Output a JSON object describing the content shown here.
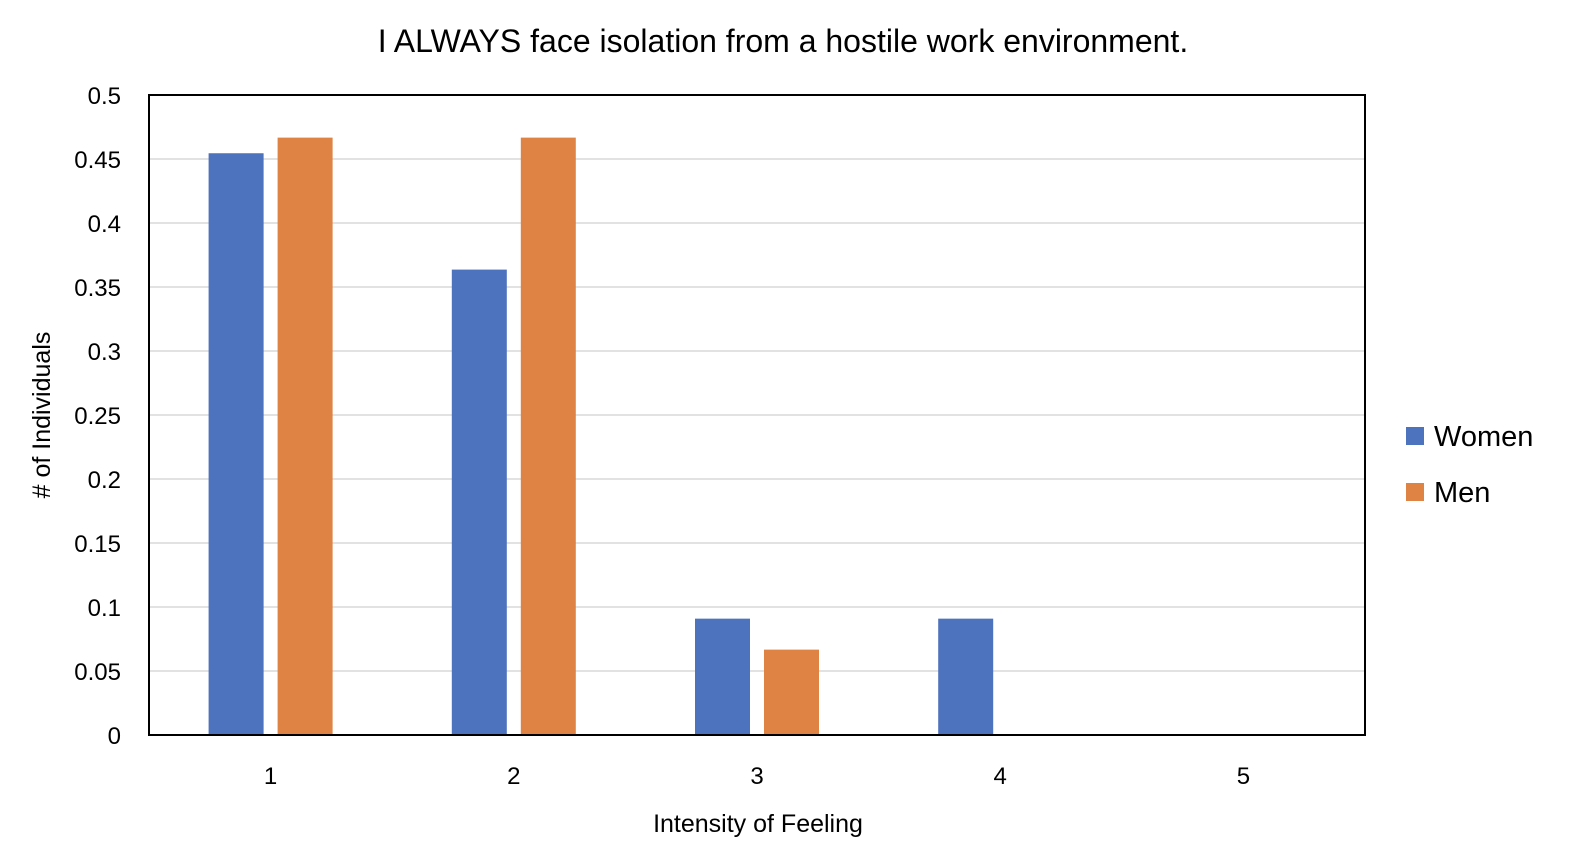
{
  "chart_data": {
    "type": "bar",
    "title": "I ALWAYS face isolation from a hostile work environment.",
    "xlabel": "Intensity of Feeling",
    "ylabel": "# of Individuals",
    "categories": [
      "1",
      "2",
      "3",
      "4",
      "5"
    ],
    "series": [
      {
        "name": "Women",
        "color": "#4E73BE",
        "values": [
          0.4545,
          0.3636,
          0.0909,
          0.0909,
          0
        ]
      },
      {
        "name": "Men",
        "color": "#DF8344",
        "values": [
          0.4667,
          0.4667,
          0.0667,
          0,
          0
        ]
      }
    ],
    "ylim": [
      0,
      0.5
    ],
    "yticks": [
      "0",
      "0.05",
      "0.1",
      "0.15",
      "0.2",
      "0.25",
      "0.3",
      "0.35",
      "0.4",
      "0.45",
      "0.5"
    ],
    "grid": true,
    "legend_position": "right",
    "gridline_color": "#D9D9D9",
    "frame_color": "#000000"
  }
}
